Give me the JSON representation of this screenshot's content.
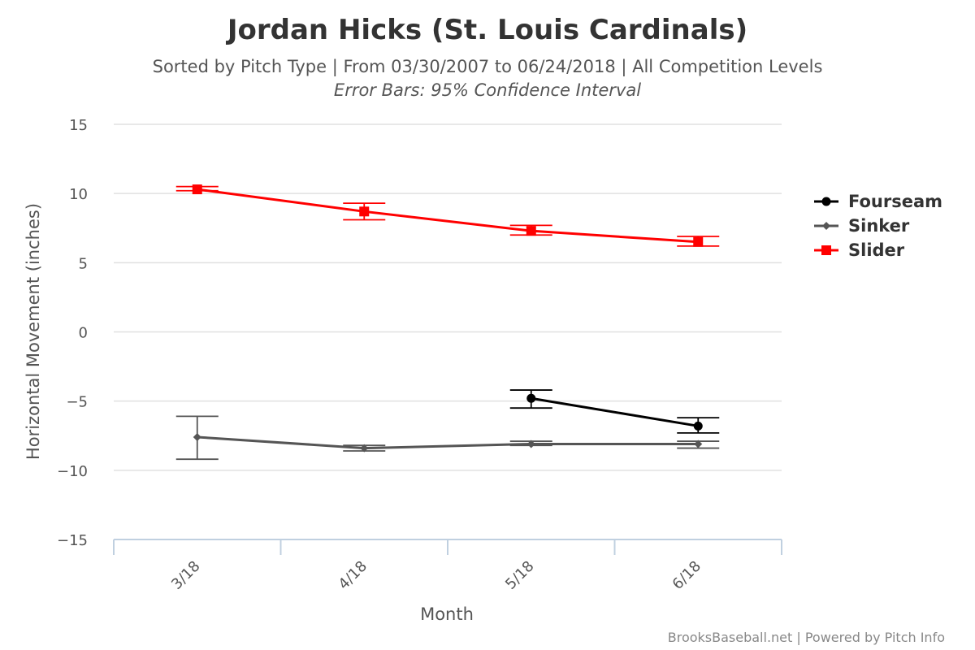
{
  "chart_data": {
    "type": "line",
    "title": "Jordan Hicks (St. Louis Cardinals)",
    "subtitle": "Sorted by Pitch Type | From 03/30/2007 to 06/24/2018 | All Competition Levels",
    "subtitle2": "Error Bars: 95% Confidence Interval",
    "xlabel": "Month",
    "ylabel": "Horizontal Movement (inches)",
    "categories": [
      "3/18",
      "4/18",
      "5/18",
      "6/18"
    ],
    "ylim": [
      -15,
      15
    ],
    "yticks": [
      15,
      10,
      5,
      0,
      -5,
      -10,
      -15
    ],
    "ytick_labels": [
      "15",
      "10",
      "5",
      "0",
      "−5",
      "−10",
      "−15"
    ],
    "grid": true,
    "legend_position": "right",
    "series": [
      {
        "name": "Fourseam",
        "color": "#000000",
        "marker": "circle",
        "values": [
          null,
          null,
          -4.8,
          -6.8
        ],
        "error_low": [
          null,
          null,
          -5.5,
          -7.3
        ],
        "error_high": [
          null,
          null,
          -4.2,
          -6.2
        ]
      },
      {
        "name": "Sinker",
        "color": "#555555",
        "marker": "diamond",
        "values": [
          -7.6,
          -8.4,
          -8.1,
          -8.1
        ],
        "error_low": [
          -9.2,
          -8.6,
          -8.2,
          -8.4
        ],
        "error_high": [
          -6.1,
          -8.2,
          -7.9,
          -7.9
        ]
      },
      {
        "name": "Slider",
        "color": "#ff0000",
        "marker": "square",
        "values": [
          10.3,
          8.7,
          7.3,
          6.5
        ],
        "error_low": [
          10.2,
          8.1,
          7.0,
          6.2
        ],
        "error_high": [
          10.5,
          9.3,
          7.7,
          6.9
        ]
      }
    ],
    "credits": "BrooksBaseball.net | Powered by Pitch Info"
  }
}
